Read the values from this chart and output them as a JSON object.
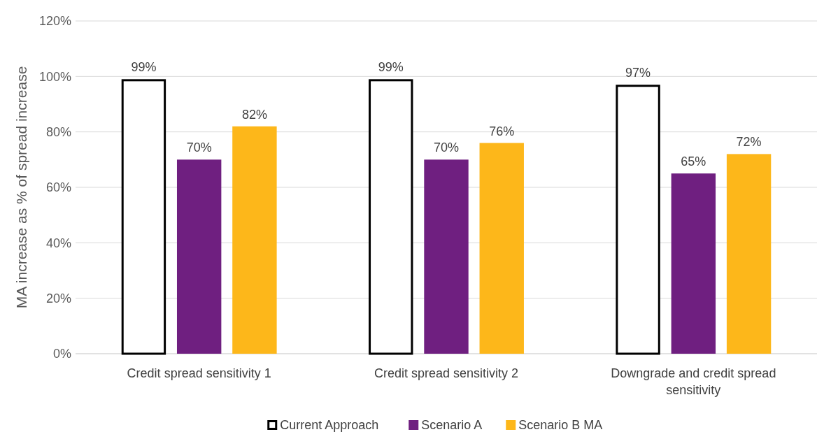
{
  "chart_data": {
    "type": "bar",
    "ylabel": "MA increase as % of spread increase",
    "categories": [
      "Credit spread sensitivity 1",
      "Credit spread sensitivity 2",
      "Downgrade and credit spread sensitivity"
    ],
    "series": [
      {
        "name": "Current Approach",
        "color": "#ffffff",
        "values": [
          99,
          99,
          97
        ],
        "value_labels": [
          "99%",
          "99%",
          "97%"
        ]
      },
      {
        "name": "Scenario A",
        "color": "#6f1f80",
        "values": [
          70,
          70,
          65
        ],
        "value_labels": [
          "70%",
          "70%",
          "65%"
        ]
      },
      {
        "name": "Scenario B MA",
        "color": "#fdb71a",
        "values": [
          82,
          76,
          72
        ],
        "value_labels": [
          "82%",
          "76%",
          "72%"
        ]
      }
    ],
    "ylim": [
      0,
      120
    ],
    "yticks": [
      {
        "value": 0,
        "label": "0%"
      },
      {
        "value": 20,
        "label": "20%"
      },
      {
        "value": 40,
        "label": "40%"
      },
      {
        "value": 60,
        "label": "60%"
      },
      {
        "value": 80,
        "label": "80%"
      },
      {
        "value": 100,
        "label": "100%"
      },
      {
        "value": 120,
        "label": "120%"
      }
    ],
    "grid": "y",
    "legend": "bottom"
  }
}
